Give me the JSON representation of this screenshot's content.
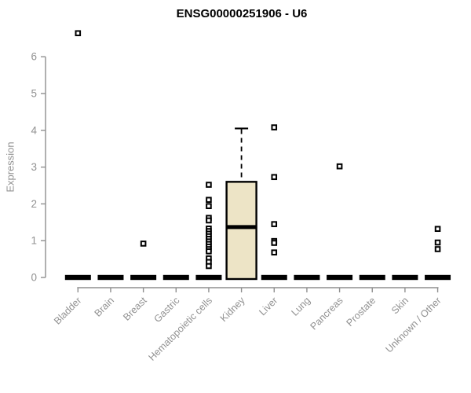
{
  "colors": {
    "title": "#000000",
    "axis": "#8f8f8f",
    "tick_label": "#919191",
    "box_fill": "#ede4c6",
    "box_line": "#000000",
    "outlier_fill": "#ffffff"
  },
  "chart_data": {
    "type": "boxplot",
    "title": "ENSG00000251906 - U6",
    "ylabel": "Expression",
    "xlabel": "",
    "ylim": [
      0,
      6.8
    ],
    "yticks": [
      0,
      1,
      2,
      3,
      4,
      5,
      6
    ],
    "grid": false,
    "legend": null,
    "categories": [
      "Bladder",
      "Brain",
      "Breast",
      "Gastric",
      "Hematopoietic cells",
      "Kidney",
      "Liver",
      "Lung",
      "Pancreas",
      "Prostate",
      "Skin",
      "Unknown / Other"
    ],
    "series": [
      {
        "category": "Bladder",
        "whisker_low": 0,
        "q1": 0,
        "median": 0,
        "q3": 0,
        "whisker_high": 0,
        "outliers": [
          6.64
        ]
      },
      {
        "category": "Brain",
        "whisker_low": 0,
        "q1": 0,
        "median": 0,
        "q3": 0,
        "whisker_high": 0,
        "outliers": []
      },
      {
        "category": "Breast",
        "whisker_low": 0,
        "q1": 0,
        "median": 0,
        "q3": 0,
        "whisker_high": 0,
        "outliers": [
          0.92
        ]
      },
      {
        "category": "Gastric",
        "whisker_low": 0,
        "q1": 0,
        "median": 0,
        "q3": 0,
        "whisker_high": 0,
        "outliers": []
      },
      {
        "category": "Hematopoietic cells",
        "whisker_low": 0,
        "q1": 0,
        "median": 0,
        "q3": 0,
        "whisker_high": 0,
        "outliers": [
          2.52,
          2.11,
          1.94,
          1.62,
          1.55,
          1.33,
          1.26,
          1.19,
          1.12,
          1.05,
          0.98,
          0.91,
          0.84,
          0.77,
          0.71,
          0.52,
          0.42,
          0.31
        ]
      },
      {
        "category": "Kidney",
        "whisker_low": 0,
        "q1": 0,
        "median": 1.37,
        "q3": 2.6,
        "whisker_high": 4.05,
        "outliers": []
      },
      {
        "category": "Liver",
        "whisker_low": 0,
        "q1": 0,
        "median": 0,
        "q3": 0,
        "whisker_high": 0,
        "outliers": [
          4.08,
          2.73,
          1.45,
          0.99,
          0.94,
          0.68
        ]
      },
      {
        "category": "Lung",
        "whisker_low": 0,
        "q1": 0,
        "median": 0,
        "q3": 0,
        "whisker_high": 0,
        "outliers": []
      },
      {
        "category": "Pancreas",
        "whisker_low": 0,
        "q1": 0,
        "median": 0,
        "q3": 0,
        "whisker_high": 0,
        "outliers": [
          3.02
        ]
      },
      {
        "category": "Prostate",
        "whisker_low": 0,
        "q1": 0,
        "median": 0,
        "q3": 0,
        "whisker_high": 0,
        "outliers": []
      },
      {
        "category": "Skin",
        "whisker_low": 0,
        "q1": 0,
        "median": 0,
        "q3": 0,
        "whisker_high": 0,
        "outliers": []
      },
      {
        "category": "Unknown / Other",
        "whisker_low": 0,
        "q1": 0,
        "median": 0,
        "q3": 0,
        "whisker_high": 0,
        "outliers": [
          1.32,
          0.95,
          0.77
        ]
      }
    ]
  }
}
